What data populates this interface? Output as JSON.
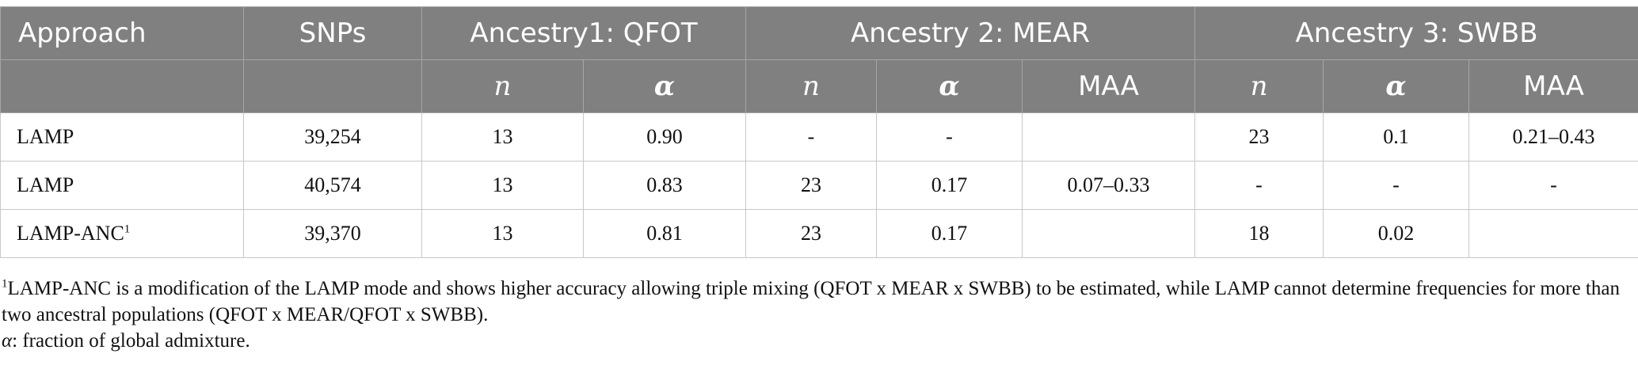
{
  "header": {
    "approach": "Approach",
    "snps": "SNPs",
    "ancestry1": "Ancestry1: QFOT",
    "ancestry2": "Ancestry 2: MEAR",
    "ancestry3": "Ancestry 3: SWBB",
    "n": "n",
    "alpha": "α",
    "maa": "MAA"
  },
  "rows": [
    {
      "approach": "LAMP",
      "sup": "",
      "snps": "39,254",
      "a1_n": "13",
      "a1_alpha": "0.90",
      "a2_n": "-",
      "a2_alpha": "-",
      "a2_maa": "",
      "a3_n": "23",
      "a3_alpha": "0.1",
      "a3_maa": "0.21–0.43"
    },
    {
      "approach": "LAMP",
      "sup": "",
      "snps": "40,574",
      "a1_n": "13",
      "a1_alpha": "0.83",
      "a2_n": "23",
      "a2_alpha": "0.17",
      "a2_maa": "0.07–0.33",
      "a3_n": "-",
      "a3_alpha": "-",
      "a3_maa": "-"
    },
    {
      "approach": "LAMP-ANC",
      "sup": "1",
      "snps": "39,370",
      "a1_n": "13",
      "a1_alpha": "0.81",
      "a2_n": "23",
      "a2_alpha": "0.17",
      "a2_maa": "",
      "a3_n": "18",
      "a3_alpha": "0.02",
      "a3_maa": ""
    }
  ],
  "footnotes": {
    "note1_sup": "1",
    "note1_text": "LAMP-ANC is a modification of the LAMP mode and shows higher accuracy allowing triple mixing (QFOT x MEAR x SWBB) to be estimated, while LAMP cannot determine frequencies for more than two ancestral populations (QFOT x MEAR/QFOT x SWBB).",
    "note2_symbol": "α",
    "note2_text": ": fraction of global admixture."
  }
}
